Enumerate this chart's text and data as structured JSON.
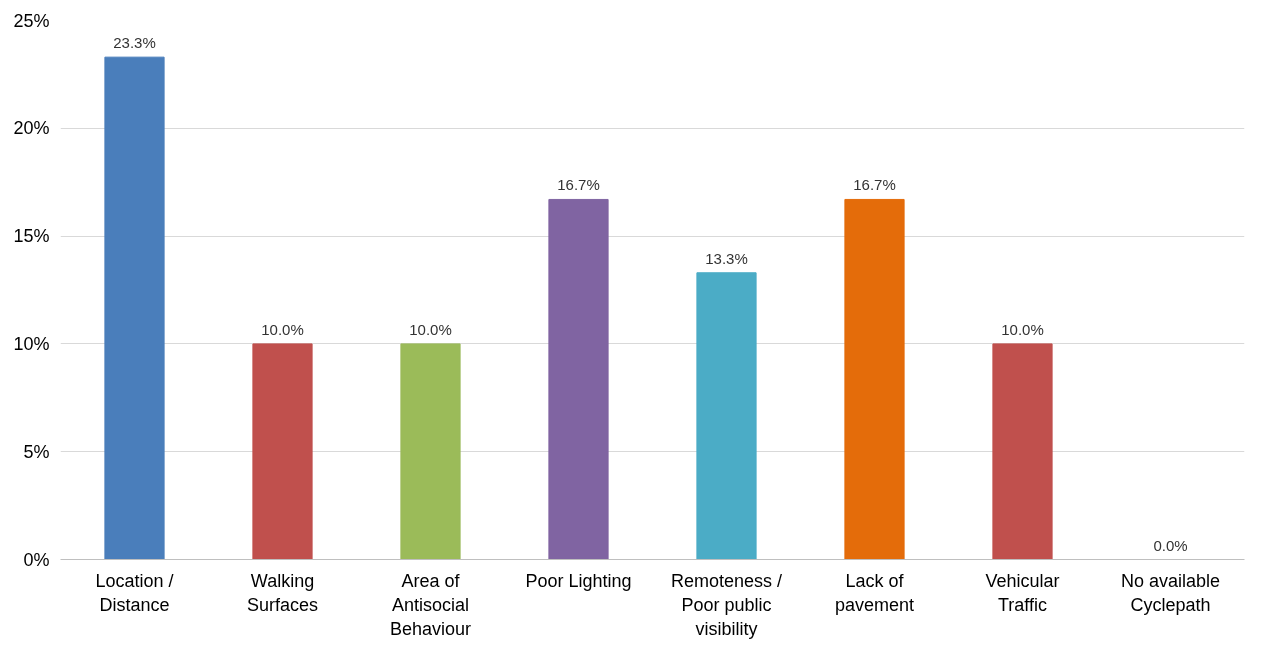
{
  "chart_data": {
    "type": "bar",
    "categories": [
      "Location / Distance",
      "Walking Surfaces",
      "Area of Antisocial Behaviour",
      "Poor Lighting",
      "Remoteness / Poor public visibility",
      "Lack of pavement",
      "Vehicular Traffic",
      "No available Cyclepath"
    ],
    "values": [
      23.3,
      10.0,
      10.0,
      16.7,
      13.3,
      16.7,
      10.0,
      0.0
    ],
    "value_labels": [
      "23.3%",
      "10.0%",
      "10.0%",
      "16.7%",
      "13.3%",
      "16.7%",
      "10.0%",
      "0.0%"
    ],
    "colors": [
      "#4a7ebb",
      "#c0504d",
      "#9bbb59",
      "#8064a2",
      "#4bacc6",
      "#e46c0a",
      "#c0504d",
      "#4a7ebb"
    ],
    "ylim": [
      0,
      25
    ],
    "yticks": [
      {
        "value": 0,
        "label": "0%"
      },
      {
        "value": 5,
        "label": "5%"
      },
      {
        "value": 10,
        "label": "10%"
      },
      {
        "value": 15,
        "label": "15%"
      },
      {
        "value": 20,
        "label": "20%"
      },
      {
        "value": 25,
        "label": "25%"
      }
    ],
    "grid": "y"
  }
}
